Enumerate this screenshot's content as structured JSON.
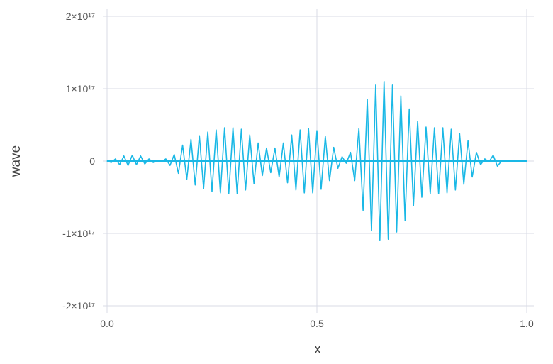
{
  "chart_data": {
    "type": "line",
    "title": "",
    "xlabel": "x",
    "ylabel": "wave",
    "xlim": [
      0,
      1
    ],
    "ylim": [
      -2e+17,
      2e+17
    ],
    "grid": true,
    "x_ticks": [
      {
        "value": 0,
        "label": "0.0"
      },
      {
        "value": 0.5,
        "label": "0.5"
      },
      {
        "value": 1,
        "label": "1.0"
      }
    ],
    "y_ticks": [
      {
        "value": 2e+17,
        "label": "2×10¹⁷"
      },
      {
        "value": 1e+17,
        "label": "1×10¹⁷"
      },
      {
        "value": 0,
        "label": "0"
      },
      {
        "value": -1e+17,
        "label": "-1×10¹⁷"
      },
      {
        "value": -2e+17,
        "label": "-2×10¹⁷"
      }
    ],
    "line_color": "#1ab8e6",
    "series": [
      {
        "x": [
          0,
          0.01,
          0.02,
          0.03,
          0.04,
          0.05,
          0.06,
          0.07,
          0.08,
          0.09,
          0.1,
          0.11,
          0.12,
          0.13,
          0.14,
          0.15,
          0.16,
          0.17,
          0.18,
          0.19,
          0.2,
          0.21,
          0.22,
          0.23,
          0.24,
          0.25,
          0.26,
          0.27,
          0.28,
          0.29,
          0.3,
          0.31,
          0.32,
          0.33,
          0.34,
          0.35,
          0.36,
          0.37,
          0.38,
          0.39,
          0.4,
          0.41,
          0.42,
          0.43,
          0.44,
          0.45,
          0.46,
          0.47,
          0.48,
          0.49,
          0.5,
          0.51,
          0.52,
          0.53,
          0.54,
          0.55,
          0.56,
          0.57,
          0.58,
          0.59,
          0.6,
          0.61,
          0.62,
          0.63,
          0.64,
          0.65,
          0.66,
          0.67,
          0.68,
          0.69,
          0.7,
          0.71,
          0.72,
          0.73,
          0.74,
          0.75,
          0.76,
          0.77,
          0.78,
          0.79,
          0.8,
          0.81,
          0.82,
          0.83,
          0.84,
          0.85,
          0.86,
          0.87,
          0.88,
          0.89,
          0.9,
          0.91,
          0.92,
          0.93,
          0.94,
          0.95,
          0.96,
          0.97,
          0.98,
          0.99,
          1.0
        ],
        "y": [
          0,
          -2000000000000000.0,
          3000000000000000.0,
          -5000000000000000.0,
          7000000000000000.0,
          -6000000000000000.0,
          8000000000000000.0,
          -5000000000000000.0,
          7000000000000000.0,
          -4000000000000000.0,
          3000000000000000.0,
          -2000000000000000.0,
          1000000000000000.0,
          -1000000000000000.0,
          3000000000000000.0,
          -6000000000000000.0,
          9000000000000000.0,
          -1.7e+16,
          2.2e+16,
          -2.5e+16,
          3e+16,
          -3.3e+16,
          3.5e+16,
          -3.8e+16,
          4e+16,
          -4.2e+16,
          4.3e+16,
          -4.4e+16,
          4.6e+16,
          -4.5e+16,
          4.6e+16,
          -4.5e+16,
          4.4e+16,
          -4e+16,
          3.6e+16,
          -3.1e+16,
          2.5e+16,
          -2e+16,
          1.8e+16,
          -1.6e+16,
          1.8e+16,
          -2.2e+16,
          2.5e+16,
          -3e+16,
          3.6e+16,
          -4e+16,
          4.3e+16,
          -4.4e+16,
          4.5e+16,
          -4.4e+16,
          4.2e+16,
          -3.9e+16,
          3.4e+16,
          -2.7e+16,
          1.9e+16,
          -1e+16,
          6000000000000000.0,
          -3000000000000000.0,
          1.2e+16,
          -2.7e+16,
          4.5e+16,
          -6.8e+16,
          8.5e+16,
          -9.6e+16,
          1.05e+17,
          -1.09e+17,
          1.1e+17,
          -1.08e+17,
          1.05e+17,
          -9.8e+16,
          9e+16,
          -8.2e+16,
          7.2e+16,
          -6.2e+16,
          5.5e+16,
          -5e+16,
          4.7e+16,
          -4.5e+16,
          4.6e+16,
          -4.5e+16,
          4.6e+16,
          -4.4e+16,
          4.4e+16,
          -4e+16,
          3.8e+16,
          -3.2e+16,
          2.8e+16,
          -2.2e+16,
          1.2e+16,
          -5000000000000000.0,
          3000000000000000.0,
          -1000000000000000.0,
          8000000000000000.0,
          -7000000000000000.0,
          0.0,
          0.0,
          0.0,
          0.0,
          0.0,
          0.0,
          0.0
        ]
      }
    ]
  }
}
